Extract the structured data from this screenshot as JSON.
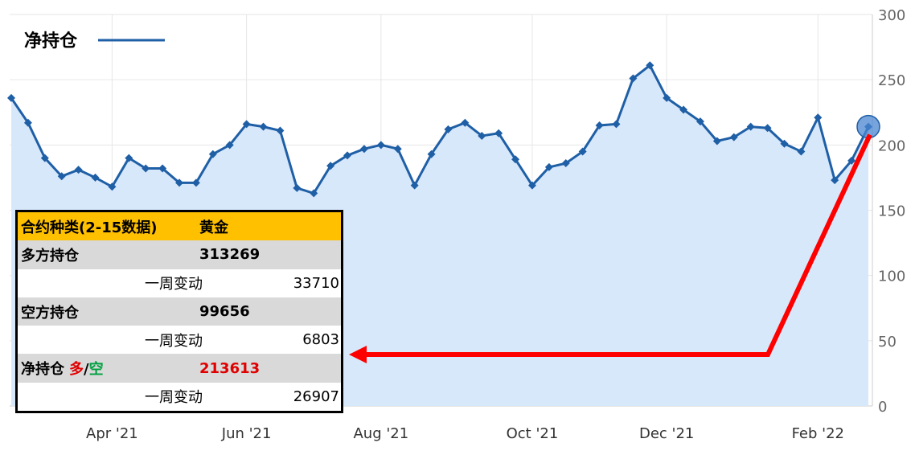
{
  "chart_data": {
    "type": "area",
    "legend_label": "净持仓",
    "color": "#1f5fa6",
    "fill": "#d7e8fb",
    "categories": [
      null,
      null,
      null,
      null,
      null,
      null,
      "Apr '21",
      null,
      null,
      null,
      null,
      null,
      null,
      null,
      "Jun '21",
      null,
      null,
      null,
      null,
      null,
      null,
      null,
      "Aug '21",
      null,
      null,
      null,
      null,
      null,
      null,
      null,
      null,
      "Oct '21",
      null,
      null,
      null,
      null,
      null,
      null,
      null,
      "Dec '21",
      null,
      null,
      null,
      null,
      null,
      null,
      null,
      null,
      "Feb '22",
      null,
      null,
      null
    ],
    "values": [
      236,
      217,
      190,
      176,
      181,
      175,
      168,
      190,
      182,
      182,
      171,
      171,
      193,
      200,
      216,
      214,
      211,
      167,
      163,
      184,
      192,
      197,
      200,
      197,
      169,
      193,
      212,
      217,
      207,
      209,
      189,
      169,
      183,
      186,
      195,
      215,
      216,
      251,
      261,
      236,
      227,
      218,
      203,
      206,
      214,
      213,
      201,
      195,
      221,
      173,
      188,
      214
    ],
    "ylim": [
      0,
      300
    ],
    "yticks": [
      0,
      50,
      100,
      150,
      200,
      250,
      300
    ],
    "grid": true
  },
  "table": {
    "header": [
      "合约种类(2-15数据)",
      "黄金"
    ],
    "rows": [
      {
        "label": "多方持仓",
        "value": 313269
      },
      {
        "label": "一周变动",
        "value": 33710
      },
      {
        "label": "空方持仓",
        "value": 99656
      },
      {
        "label": "一周变动",
        "value": 6803
      },
      {
        "label_parts": [
          "净持仓",
          "多",
          "/",
          "空"
        ],
        "value": 213613
      },
      {
        "label": "一周变动",
        "value": 26907
      }
    ]
  }
}
